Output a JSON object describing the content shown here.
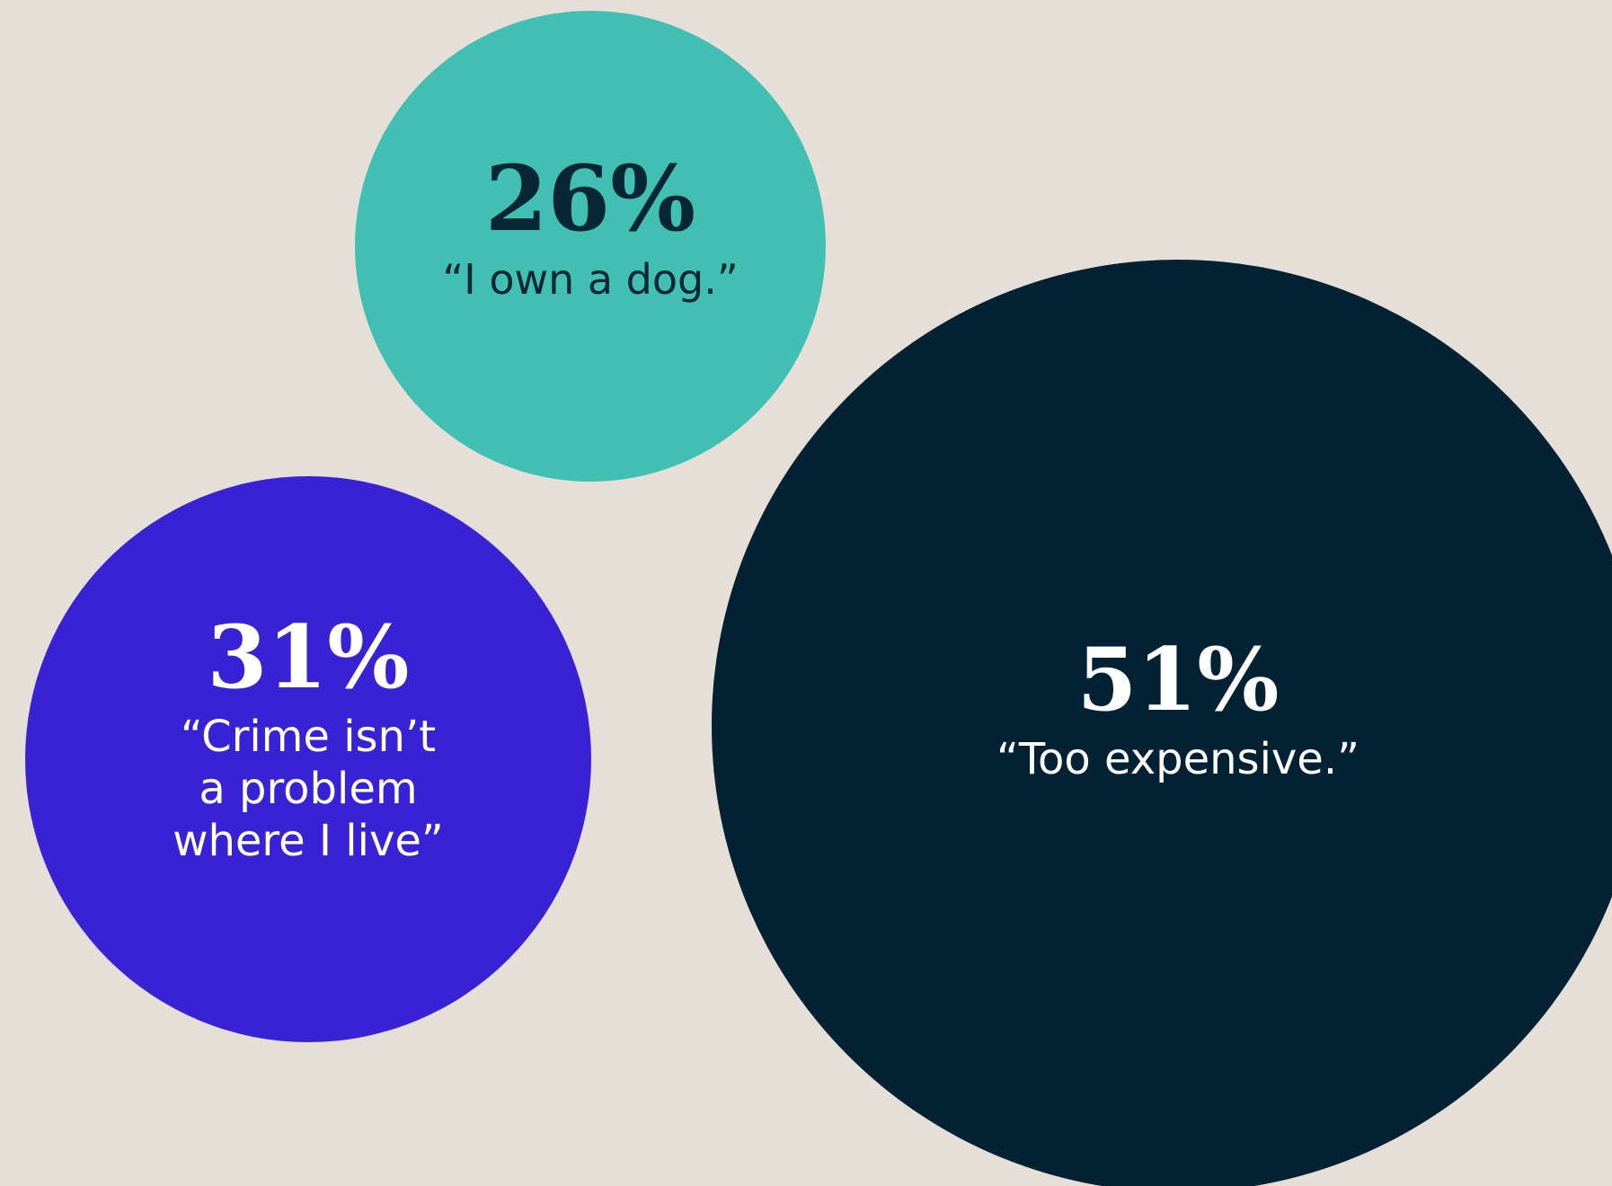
{
  "background_color": "#e6dfd8",
  "chart_data": {
    "type": "bubble",
    "title": "",
    "bubbles": [
      {
        "value": 26,
        "value_label": "26%",
        "label_lines": [
          "“I own a dog.”"
        ],
        "color": "#40bfb2",
        "text_color": "#062636"
      },
      {
        "value": 31,
        "value_label": "31%",
        "label_lines": [
          "“Crime isn’t",
          "a problem",
          "where I live”"
        ],
        "color": "#3823d4",
        "text_color": "#ffffff"
      },
      {
        "value": 51,
        "value_label": "51%",
        "label_lines": [
          "“Too expensive.”"
        ],
        "color": "#022234",
        "text_color": "#ffffff"
      }
    ]
  }
}
